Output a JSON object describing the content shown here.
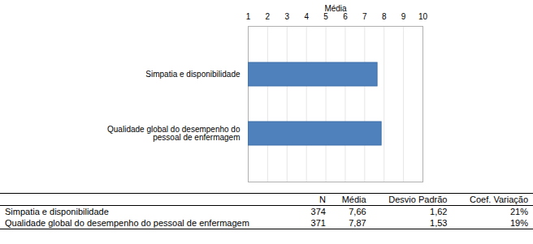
{
  "chart_data": {
    "type": "bar",
    "orientation": "horizontal",
    "xlabel": "Média",
    "categories": [
      "Simpatia e disponibilidade",
      "Qualidade global do desempenho do pessoal de enfermagem"
    ],
    "values": [
      7.66,
      7.87
    ],
    "color": "#4f81bd",
    "xlim": [
      1,
      10
    ],
    "xticks": [
      1,
      2,
      3,
      4,
      5,
      6,
      7,
      8,
      9,
      10
    ],
    "grid": true
  },
  "table": {
    "columns": [
      "N",
      "Média",
      "Desvio Padrão",
      "Coef. Variação"
    ],
    "rows": [
      {
        "label": "Simpatia e disponibilidade",
        "cells": [
          "374",
          "7,66",
          "1,62",
          "21%"
        ]
      },
      {
        "label": "Qualidade global do desempenho do pessoal de enfermagem",
        "cells": [
          "371",
          "7,87",
          "1,53",
          "19%"
        ]
      }
    ]
  }
}
